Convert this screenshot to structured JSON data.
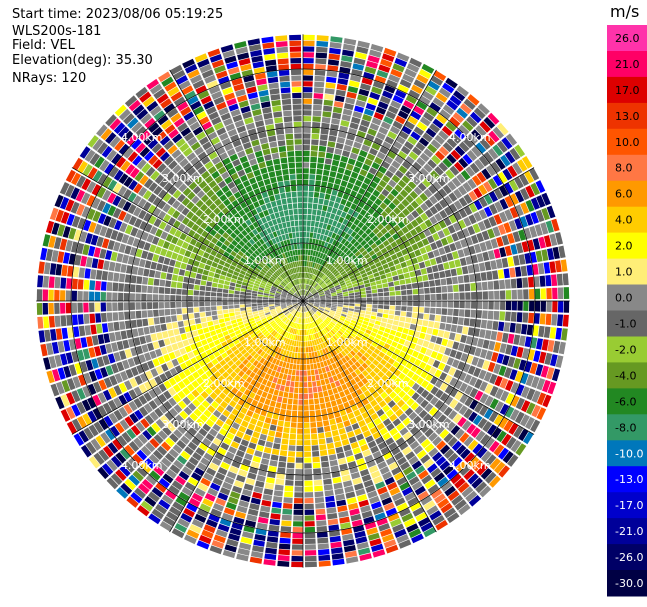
{
  "header": {
    "start_time": "Start time: 2023/08/06 05:19:25",
    "instrument": "WLS200s-181",
    "field": "Field: VEL",
    "elevation": "Elevation(deg): 35.30",
    "nrays": "NRays: 120"
  },
  "colorbar": {
    "unit": "m/s",
    "ticks": [
      "26.0",
      "21.0",
      "17.0",
      "13.0",
      "10.0",
      "8.0",
      "6.0",
      "4.0",
      "2.0",
      "1.0",
      "0.0",
      "-1.0",
      "-2.0",
      "-4.0",
      "-6.0",
      "-8.0",
      "-10.0",
      "-13.0",
      "-17.0",
      "-21.0",
      "-26.0",
      "-30.0"
    ],
    "colors": [
      "#ff33aa",
      "#ff0066",
      "#dd0000",
      "#ee3300",
      "#ff5500",
      "#ff7744",
      "#ff9900",
      "#ffcc00",
      "#ffff00",
      "#ffee77",
      "#888888",
      "#666666",
      "#99cc33",
      "#669922",
      "#228822",
      "#339966",
      "#0077bb",
      "#0000ff",
      "#0000cc",
      "#000099",
      "#000066",
      "#000044"
    ]
  },
  "chart_data": {
    "type": "polar-ppi",
    "field": "VEL",
    "unit": "m/s",
    "nrays": 120,
    "range_rings_km": [
      1.0,
      2.0,
      3.0,
      4.0
    ],
    "ring_labels": [
      "1.00km",
      "2.00km",
      "3.00km",
      "4.00km"
    ],
    "max_range_km": 4.6,
    "radial_lines_deg": [
      0,
      30,
      60,
      90,
      120,
      150,
      180,
      210,
      240,
      270,
      300,
      330
    ],
    "velocity_scale": [
      -30,
      -26,
      -21,
      -17,
      -13,
      -10,
      -8,
      -6,
      -4,
      -2,
      -1,
      0,
      1,
      2,
      4,
      6,
      8,
      10,
      13,
      17,
      21,
      26
    ],
    "pattern": {
      "approaching_sector_deg": [
        270,
        90
      ],
      "receding_sector_deg": [
        90,
        270
      ],
      "max_approach_mps": -7,
      "max_recede_mps": 8
    }
  }
}
